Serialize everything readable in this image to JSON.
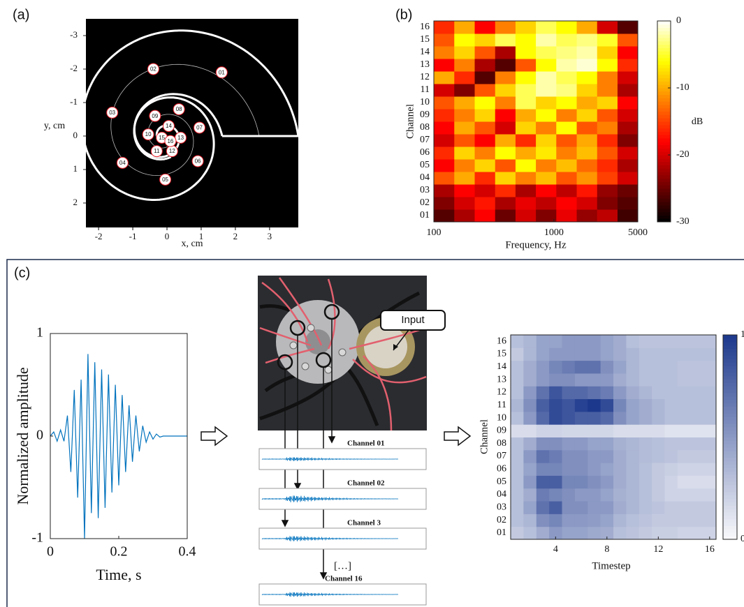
{
  "figure": {
    "panel_labels": [
      "(a)",
      "(b)",
      "(c)"
    ],
    "diagram": {
      "input_label": "Input",
      "channel_labels": [
        "Channel 01",
        "Channel 02",
        "Channel 3",
        "Channel 16"
      ],
      "ellipsis": "[…]"
    }
  },
  "chart_data": [
    {
      "type": "scatter",
      "x_label": "x, cm",
      "y_label": "y, cm",
      "labels": [
        "01",
        "02",
        "03",
        "04",
        "05",
        "06",
        "07",
        "08",
        "09",
        "10",
        "11",
        "12",
        "13",
        "14",
        "15",
        "16"
      ],
      "x": [
        1.6,
        -0.4,
        -1.6,
        -1.3,
        -0.05,
        0.9,
        0.95,
        0.35,
        -0.35,
        -0.55,
        -0.3,
        0.15,
        0.4,
        0.05,
        -0.15,
        0.1
      ],
      "values": [
        -1.9,
        -2.0,
        -0.7,
        0.8,
        1.3,
        0.75,
        -0.25,
        -0.8,
        -0.6,
        -0.05,
        0.45,
        0.45,
        0.05,
        -0.3,
        0.05,
        0.15
      ],
      "xlim": [
        -2.37,
        3.84
      ],
      "ylim": [
        2.73,
        -3.5
      ],
      "xticks": [
        -2,
        -1,
        0,
        1,
        2,
        3
      ],
      "yticks": [
        -3,
        -2,
        -1,
        0,
        1,
        2
      ],
      "color": "#e8202a"
    },
    {
      "type": "heatmap",
      "x_label": "Frequency, Hz",
      "y_label": "Channel",
      "colorbar_label": "dB",
      "colormap": "hot",
      "log_x": true,
      "categories": [
        "01",
        "02",
        "03",
        "04",
        "05",
        "06",
        "07",
        "08",
        "09",
        "10",
        "11",
        "12",
        "13",
        "14",
        "15",
        "16"
      ],
      "xbins": [
        100,
        148,
        219,
        324,
        479,
        708,
        1047,
        1549,
        2291,
        3388,
        5000
      ],
      "values": [
        [
          -26,
          -22,
          -18,
          -25,
          -20,
          -24,
          -19,
          -23,
          -21,
          -27
        ],
        [
          -24,
          -20,
          -17,
          -22,
          -19,
          -21,
          -18,
          -20,
          -24,
          -26
        ],
        [
          -22,
          -18,
          -20,
          -16,
          -22,
          -18,
          -21,
          -17,
          -23,
          -25
        ],
        [
          -14,
          -10,
          -16,
          -8,
          -12,
          -9,
          -14,
          -11,
          -15,
          -20
        ],
        [
          -18,
          -12,
          -8,
          -14,
          -6,
          -12,
          -9,
          -13,
          -16,
          -22
        ],
        [
          -16,
          -8,
          -12,
          -6,
          -10,
          -7,
          -12,
          -9,
          -14,
          -20
        ],
        [
          -20,
          -14,
          -18,
          -10,
          -16,
          -8,
          -14,
          -10,
          -16,
          -24
        ],
        [
          -18,
          -10,
          -14,
          -20,
          -8,
          -12,
          -6,
          -14,
          -12,
          -22
        ],
        [
          -16,
          -12,
          -8,
          -18,
          -10,
          -6,
          -12,
          -8,
          -14,
          -20
        ],
        [
          -14,
          -10,
          -6,
          -12,
          -4,
          -8,
          -6,
          -10,
          -8,
          -18
        ],
        [
          -20,
          -24,
          -14,
          -8,
          -4,
          -2,
          -3,
          -8,
          -12,
          -22
        ],
        [
          -10,
          -16,
          -26,
          -12,
          -6,
          -2,
          -4,
          -6,
          -12,
          -20
        ],
        [
          -18,
          -12,
          -22,
          -26,
          -14,
          -6,
          -2,
          -1,
          -6,
          -16
        ],
        [
          -12,
          -8,
          -14,
          -22,
          -6,
          -4,
          -3,
          -2,
          -8,
          -18
        ],
        [
          -14,
          -6,
          -8,
          -4,
          -6,
          -2,
          -4,
          -3,
          -5,
          -14
        ],
        [
          -16,
          -10,
          -18,
          -12,
          -8,
          -4,
          -6,
          -10,
          -20,
          -26
        ]
      ],
      "xlim": [
        100,
        5000
      ],
      "xticks": [
        100,
        1000,
        5000
      ],
      "zlim": [
        -30,
        0
      ],
      "zticks": [
        0,
        -10,
        -20,
        -30
      ]
    },
    {
      "type": "line",
      "x_label": "Time, s",
      "y_label": "Normalized amplitude",
      "color": "#0072bd",
      "x": [
        0,
        0.01,
        0.02,
        0.03,
        0.04,
        0.05,
        0.06,
        0.07,
        0.08,
        0.09,
        0.1,
        0.11,
        0.12,
        0.13,
        0.14,
        0.15,
        0.16,
        0.17,
        0.18,
        0.19,
        0.2,
        0.21,
        0.22,
        0.23,
        0.24,
        0.25,
        0.26,
        0.27,
        0.28,
        0.29,
        0.3,
        0.31,
        0.32,
        0.33,
        0.34,
        0.35,
        0.36,
        0.37,
        0.38,
        0.39,
        0.4
      ],
      "values": [
        0,
        0.04,
        -0.05,
        0.06,
        -0.05,
        0.2,
        -0.35,
        0.45,
        -0.6,
        0.55,
        -1,
        0.8,
        -0.75,
        0.72,
        -0.8,
        0.65,
        -0.7,
        0.6,
        -0.55,
        0.5,
        -0.48,
        0.4,
        -0.35,
        0.3,
        -0.25,
        0.2,
        -0.15,
        0.1,
        -0.06,
        0.04,
        -0.03,
        0.02,
        -0.01,
        0,
        0,
        0,
        0,
        0,
        0,
        0,
        0
      ],
      "xlim": [
        0,
        0.4
      ],
      "ylim": [
        -1,
        1
      ],
      "xticks": [
        0,
        0.2,
        0.4
      ],
      "yticks": [
        -1,
        0,
        1
      ]
    },
    {
      "type": "heatmap",
      "x_label": "Timestep",
      "y_label": "Channel",
      "colormap": "blues",
      "categories": [
        "01",
        "02",
        "03",
        "04",
        "05",
        "06",
        "07",
        "08",
        "09",
        "10",
        "11",
        "12",
        "13",
        "14",
        "15",
        "16"
      ],
      "x": [
        1,
        2,
        3,
        4,
        5,
        6,
        7,
        8,
        9,
        10,
        11,
        12,
        13,
        14,
        15,
        16
      ],
      "values": [
        [
          0.25,
          0.3,
          0.4,
          0.5,
          0.45,
          0.45,
          0.42,
          0.4,
          0.3,
          0.28,
          0.25,
          0.22,
          0.22,
          0.2,
          0.2,
          0.2
        ],
        [
          0.3,
          0.35,
          0.55,
          0.6,
          0.5,
          0.5,
          0.48,
          0.45,
          0.35,
          0.3,
          0.28,
          0.25,
          0.25,
          0.25,
          0.25,
          0.25
        ],
        [
          0.3,
          0.45,
          0.7,
          0.8,
          0.55,
          0.55,
          0.5,
          0.5,
          0.4,
          0.35,
          0.3,
          0.28,
          0.25,
          0.25,
          0.25,
          0.25
        ],
        [
          0.3,
          0.4,
          0.65,
          0.6,
          0.55,
          0.5,
          0.5,
          0.45,
          0.38,
          0.35,
          0.3,
          0.25,
          0.2,
          0.2,
          0.2,
          0.2
        ],
        [
          0.3,
          0.5,
          0.8,
          0.8,
          0.6,
          0.6,
          0.55,
          0.5,
          0.4,
          0.35,
          0.3,
          0.25,
          0.2,
          0.15,
          0.15,
          0.15
        ],
        [
          0.3,
          0.45,
          0.6,
          0.6,
          0.55,
          0.55,
          0.5,
          0.45,
          0.4,
          0.35,
          0.3,
          0.25,
          0.22,
          0.2,
          0.2,
          0.2
        ],
        [
          0.3,
          0.5,
          0.7,
          0.65,
          0.55,
          0.55,
          0.5,
          0.5,
          0.4,
          0.35,
          0.32,
          0.3,
          0.28,
          0.25,
          0.25,
          0.25
        ],
        [
          0.3,
          0.4,
          0.55,
          0.55,
          0.5,
          0.5,
          0.45,
          0.45,
          0.38,
          0.35,
          0.32,
          0.3,
          0.28,
          0.28,
          0.28,
          0.28
        ],
        [
          0.15,
          0.15,
          0.2,
          0.2,
          0.18,
          0.18,
          0.18,
          0.18,
          0.15,
          0.15,
          0.15,
          0.15,
          0.12,
          0.12,
          0.12,
          0.12
        ],
        [
          0.3,
          0.5,
          0.75,
          0.9,
          0.85,
          0.8,
          0.8,
          0.75,
          0.55,
          0.45,
          0.4,
          0.35,
          0.3,
          0.3,
          0.3,
          0.3
        ],
        [
          0.35,
          0.55,
          0.8,
          0.9,
          0.85,
          0.95,
          1,
          0.9,
          0.6,
          0.45,
          0.4,
          0.35,
          0.3,
          0.3,
          0.3,
          0.3
        ],
        [
          0.3,
          0.5,
          0.7,
          0.85,
          0.75,
          0.75,
          0.7,
          0.65,
          0.5,
          0.4,
          0.35,
          0.3,
          0.3,
          0.3,
          0.3,
          0.3
        ],
        [
          0.3,
          0.4,
          0.5,
          0.55,
          0.55,
          0.5,
          0.5,
          0.5,
          0.4,
          0.35,
          0.3,
          0.3,
          0.3,
          0.28,
          0.28,
          0.28
        ],
        [
          0.3,
          0.4,
          0.5,
          0.6,
          0.65,
          0.7,
          0.7,
          0.55,
          0.45,
          0.35,
          0.3,
          0.3,
          0.3,
          0.28,
          0.28,
          0.28
        ],
        [
          0.25,
          0.35,
          0.45,
          0.5,
          0.5,
          0.5,
          0.5,
          0.45,
          0.4,
          0.35,
          0.3,
          0.3,
          0.3,
          0.3,
          0.3,
          0.3
        ],
        [
          0.3,
          0.35,
          0.45,
          0.45,
          0.5,
          0.5,
          0.5,
          0.45,
          0.4,
          0.3,
          0.28,
          0.28,
          0.28,
          0.28,
          0.28,
          0.28
        ]
      ],
      "xlim": [
        0.5,
        16.5
      ],
      "xticks": [
        4,
        8,
        12,
        16
      ],
      "zlim": [
        0,
        1
      ],
      "zticks": [
        0,
        1
      ]
    }
  ]
}
